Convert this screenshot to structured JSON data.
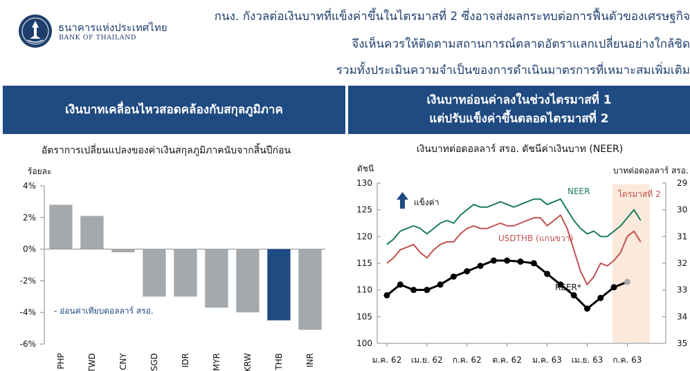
{
  "header": {
    "bank_name_th": "ธนาคารแห่งประเทศไทย",
    "bank_name_en": "BANK OF THAILAND",
    "headline_lines": [
      "กนง. กังวลต่อเงินบาทที่แข็งค่าขึ้นในไตรมาสที่ 2 ซึ่งอาจส่งผลกระทบต่อการฟื้นตัวของเศรษฐกิจ",
      "จึงเห็นควรให้ติดตามสถานการณ์ตลาดอัตราแลกเปลี่ยนอย่างใกล้ชิด",
      "รวมทั้งประเมินความจำเป็นของการดำเนินมาตรการที่เหมาะสมเพิ่มเติม"
    ]
  },
  "left_panel": {
    "banner": "เงินบาทเคลื่อนไหวสอดคล้องกับสกุลภูมิภาค"
  },
  "right_panel": {
    "banner_lines": [
      "เงินบาทอ่อนค่าลงในช่วงไตรมาสที่ 1",
      "แต่ปรับแข็งค่าขึ้นตลอดไตรมาสที่ 2"
    ]
  },
  "colors": {
    "banner": "#1f4a82",
    "bar_gray": "#a3a9ad",
    "bar_highlight": "#1f4a82",
    "neer": "#1a7a61",
    "usdthb": "#c0504d",
    "reer": "#000000",
    "shade": "#fbe9dc"
  },
  "chart_data": [
    {
      "type": "bar",
      "title": "อัตราการเปลี่ยนแปลงของค่าเงินสกุลภูมิภาคนับจากสิ้นปีก่อน",
      "ylabel": "ร้อยละ",
      "ylim": [
        -6,
        4
      ],
      "yticks": [
        "4%",
        "2%",
        "0%",
        "-2%",
        "-4%",
        "-6%"
      ],
      "categories": [
        "PHP",
        "TWD",
        "CNY",
        "SGD",
        "IDR",
        "MYR",
        "KRW",
        "THB",
        "INR"
      ],
      "values": [
        2.8,
        2.1,
        -0.2,
        -3.0,
        -3.0,
        -3.7,
        -4.0,
        -4.5,
        -5.1
      ],
      "highlight": "THB",
      "annotation": "- อ่อนค่าเทียบดอลลาร์ สรอ."
    },
    {
      "type": "line",
      "title": "เงินบาทต่อดอลลาร์ สรอ. ดัชนีค่าเงินบาท (NEER)",
      "ylabel_left": "ดัชนี",
      "ylabel_right": "บาทต่อดอลลาร์ สรอ.",
      "ylim_left": [
        100,
        130
      ],
      "ylim_right": [
        35,
        29
      ],
      "yticks_left": [
        "130",
        "125",
        "120",
        "115",
        "110",
        "105",
        "100"
      ],
      "yticks_right": [
        "29",
        "30",
        "31",
        "32",
        "33",
        "34",
        "35"
      ],
      "x_labels": [
        "ม.ค. 62",
        "เม.ย. 62",
        "ก.ค. 62",
        "ต.ค. 62",
        "ม.ค. 63",
        "เม.ย. 63",
        "ก.ค. 63"
      ],
      "strong_label": "แข็งค่า",
      "shade_label": "ไตรมาสที่ 2",
      "series": [
        {
          "name": "NEER",
          "axis": "left",
          "x": [
            0,
            0.5,
            1,
            1.5,
            2,
            2.5,
            3,
            3.5,
            4,
            4.5,
            5,
            5.5,
            6,
            6.5,
            7,
            7.5,
            8,
            8.5,
            9,
            9.5,
            10,
            10.5,
            11,
            11.5,
            12,
            12.5,
            13,
            13.5,
            14,
            14.5,
            15,
            15.5,
            16,
            16.5,
            17,
            17.5,
            18,
            18.5,
            19
          ],
          "values": [
            118.5,
            119.5,
            121.0,
            121.5,
            122.0,
            121.5,
            120.5,
            121.5,
            122.5,
            123.0,
            122.5,
            124.0,
            125.0,
            126.0,
            125.5,
            125.5,
            126.0,
            126.5,
            126.0,
            125.5,
            126.0,
            126.5,
            127.0,
            127.0,
            126.0,
            126.5,
            127.0,
            125.0,
            123.0,
            121.5,
            120.5,
            121.0,
            120.0,
            120.0,
            121.0,
            122.0,
            123.5,
            125.0,
            123.0
          ]
        },
        {
          "name": "USDTHB (แกนขวา)",
          "axis": "right",
          "x": [
            0,
            0.5,
            1,
            1.5,
            2,
            2.5,
            3,
            3.5,
            4,
            4.5,
            5,
            5.5,
            6,
            6.5,
            7,
            7.5,
            8,
            8.5,
            9,
            9.5,
            10,
            10.5,
            11,
            11.5,
            12,
            12.5,
            13,
            13.5,
            14,
            14.5,
            15,
            15.5,
            16,
            16.5,
            17,
            17.5,
            18,
            18.5,
            19
          ],
          "values": [
            32.0,
            31.8,
            31.5,
            31.4,
            31.3,
            31.6,
            31.8,
            31.5,
            31.3,
            31.2,
            31.2,
            30.9,
            30.7,
            30.6,
            30.7,
            30.7,
            30.6,
            30.5,
            30.6,
            30.6,
            30.5,
            30.4,
            30.3,
            30.3,
            30.6,
            30.4,
            30.2,
            30.7,
            31.5,
            32.3,
            32.8,
            32.5,
            32.0,
            32.1,
            31.9,
            31.6,
            31.0,
            30.8,
            31.2
          ]
        },
        {
          "name": "REER*",
          "axis": "left",
          "x": [
            0,
            1,
            2,
            3,
            4,
            5,
            6,
            7,
            8,
            9,
            10,
            11,
            12,
            13,
            14,
            15,
            16,
            17,
            18
          ],
          "values": [
            109.0,
            111.0,
            110.0,
            110.0,
            111.0,
            112.5,
            113.5,
            114.5,
            115.5,
            115.5,
            115.3,
            115.0,
            113.0,
            111.0,
            109.0,
            106.5,
            108.5,
            110.5,
            111.5
          ]
        }
      ]
    }
  ]
}
